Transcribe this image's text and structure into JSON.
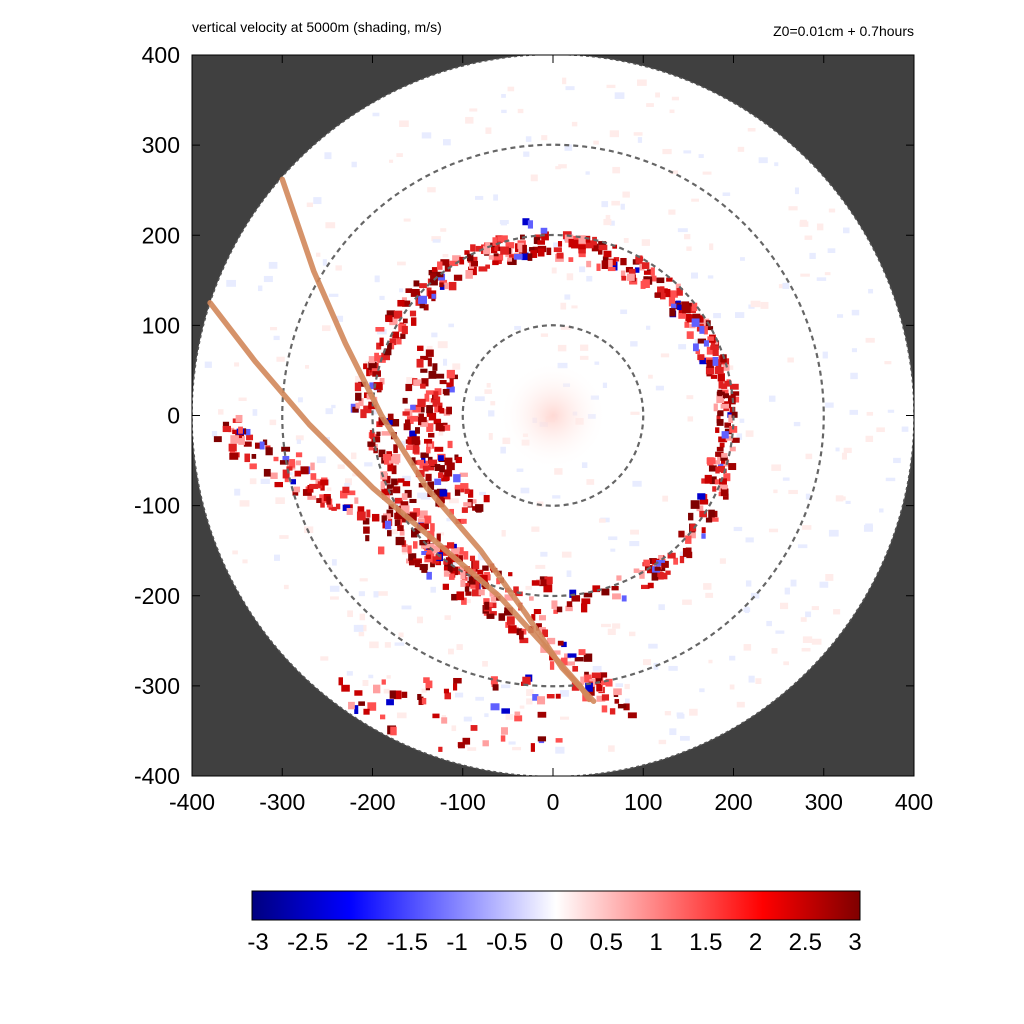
{
  "chart_data": {
    "type": "heatmap",
    "title": "vertical velocity at 5000m (shading, m/s)",
    "subtitle": "Z0=0.01cm  + 0.7hours",
    "xlabel": "",
    "ylabel": "",
    "xlim": [
      -400,
      400
    ],
    "ylim": [
      -400,
      400
    ],
    "x_ticks": [
      "-400",
      "-300",
      "-200",
      "-100",
      "0",
      "100",
      "200",
      "300",
      "400"
    ],
    "y_ticks": [
      "400",
      "300",
      "200",
      "100",
      "0",
      "-100",
      "-200",
      "-300",
      "-400"
    ],
    "x_tick_values": [
      -400,
      -300,
      -200,
      -100,
      0,
      100,
      200,
      300,
      400
    ],
    "y_tick_values": [
      400,
      300,
      200,
      100,
      0,
      -100,
      -200,
      -300,
      -400
    ],
    "domain_radius": 400,
    "reference_circles_radius": [
      100,
      200,
      300
    ],
    "grid": false,
    "colorbar": {
      "range": [
        -3,
        3
      ],
      "ticks": [
        "-3",
        "-2.5",
        "-2",
        "-1.5",
        "-1",
        "-0.5",
        "0",
        "0.5",
        "1",
        "1.5",
        "2",
        "2.5",
        "3"
      ],
      "tick_values": [
        -3,
        -2.5,
        -2,
        -1.5,
        -1,
        -0.5,
        0,
        0.5,
        1,
        1.5,
        2,
        2.5,
        3
      ],
      "colors": [
        "#00007f",
        "#0000ff",
        "#ffffff",
        "#ff0000",
        "#7f0000"
      ]
    },
    "tracks": [
      {
        "points": [
          [
            -300,
            262
          ],
          [
            -265,
            160
          ],
          [
            -230,
            80
          ],
          [
            -190,
            0
          ],
          [
            -140,
            -80
          ],
          [
            -80,
            -150
          ],
          [
            -30,
            -220
          ],
          [
            10,
            -280
          ],
          [
            45,
            -317
          ]
        ]
      },
      {
        "points": [
          [
            -380,
            125
          ],
          [
            -330,
            60
          ],
          [
            -270,
            -10
          ],
          [
            -200,
            -80
          ],
          [
            -130,
            -140
          ],
          [
            -60,
            -200
          ],
          [
            -10,
            -255
          ],
          [
            30,
            -300
          ],
          [
            40,
            -315
          ]
        ]
      }
    ],
    "features": [
      {
        "type": "spiral_updraft_band",
        "radius_range": [
          150,
          210
        ],
        "sign": "positive"
      },
      {
        "type": "outer_rainband",
        "location": "southwest",
        "sign": "positive"
      },
      {
        "type": "downdraft_spots",
        "location": "eyewall east",
        "sign": "negative"
      }
    ],
    "colors": {
      "outside_domain": "#404040",
      "track": "#d2875a",
      "circle": "#666666",
      "positive": "#c00000",
      "negative": "#0000cc"
    }
  }
}
